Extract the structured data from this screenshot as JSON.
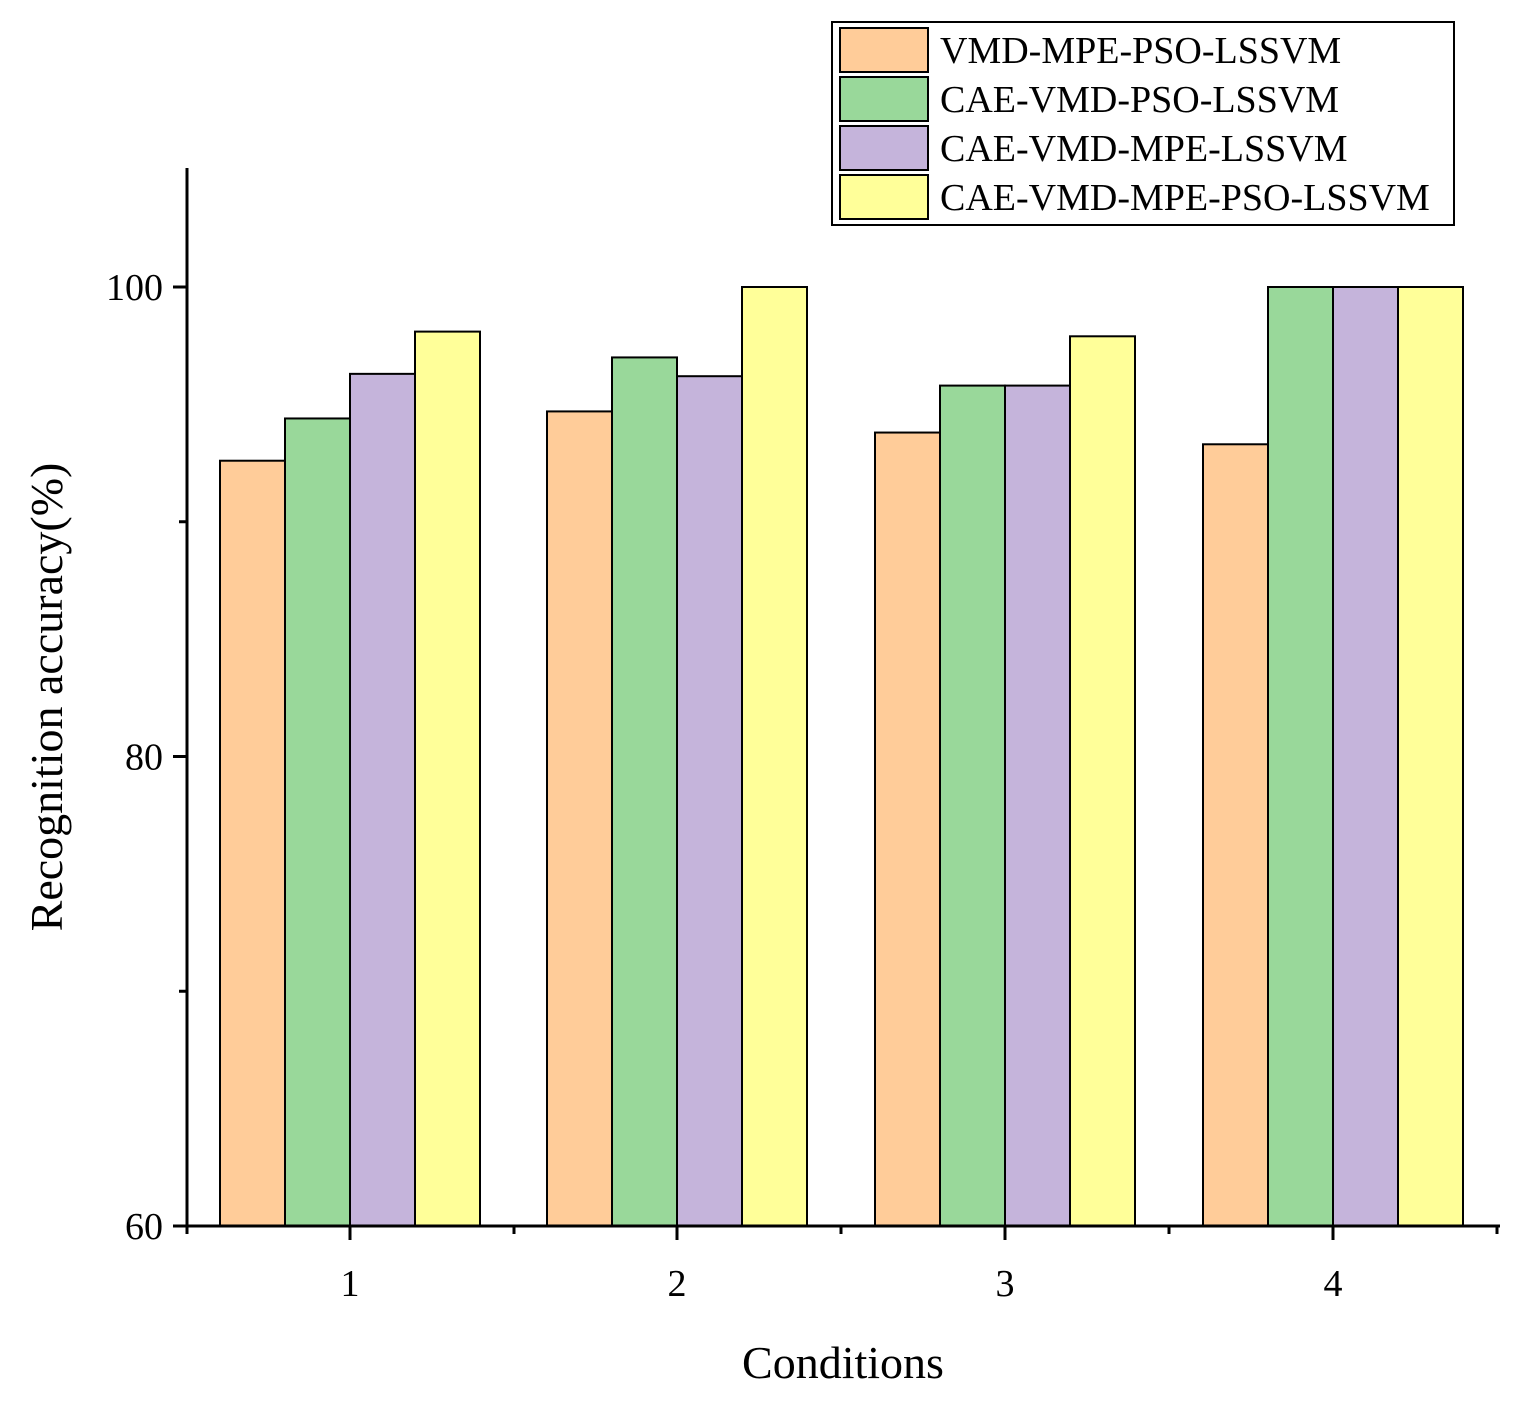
{
  "chart_data": {
    "type": "bar",
    "title": "",
    "xlabel": "Conditions",
    "ylabel": "Recognition accuracy(%)",
    "categories": [
      "1",
      "2",
      "3",
      "4"
    ],
    "ylim": [
      60,
      105
    ],
    "y_ticks": [
      60,
      80,
      100
    ],
    "y_tick_labels": [
      "60",
      "80",
      "100"
    ],
    "y_minor_ticks": [
      70,
      90
    ],
    "grid": false,
    "legend_position": "top-right",
    "series": [
      {
        "name": "VMD-MPE-PSO-LSSVM",
        "color": "#FFCC99",
        "values": [
          92.6,
          94.7,
          93.8,
          93.3
        ]
      },
      {
        "name": "CAE-VMD-PSO-LSSVM",
        "color": "#99D89A",
        "values": [
          94.4,
          97.0,
          95.8,
          100
        ]
      },
      {
        "name": "CAE-VMD-MPE-LSSVM",
        "color": "#C5B4DB",
        "values": [
          96.3,
          96.2,
          95.8,
          100
        ]
      },
      {
        "name": "CAE-VMD-MPE-PSO-LSSVM",
        "color": "#FFFF99",
        "values": [
          98.1,
          100,
          97.9,
          100
        ]
      }
    ]
  }
}
